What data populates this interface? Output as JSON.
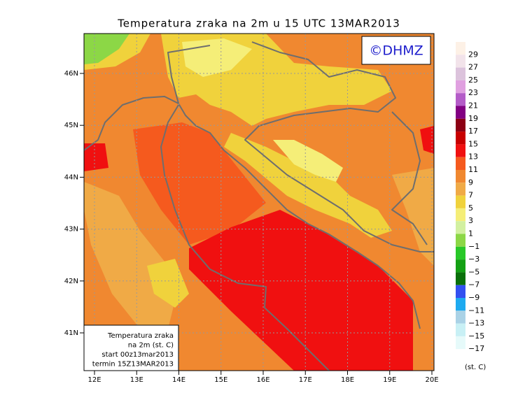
{
  "map": {
    "title": "Temperatura zraka na 2m u 15 UTC 13MAR2013",
    "watermark": "©DHMZ",
    "lat_labels": [
      "46N",
      "45N",
      "44N",
      "43N",
      "42N",
      "41N"
    ],
    "lon_labels": [
      "12E",
      "13E",
      "14E",
      "15E",
      "16E",
      "17E",
      "18E",
      "19E",
      "20E"
    ],
    "info": [
      "Temperatura zraka",
      "na 2m (st. C)",
      "start 00z13mar2013",
      "termin 15Z13MAR2013"
    ],
    "colorbar": {
      "labels": [
        "29",
        "27",
        "25",
        "23",
        "21",
        "19",
        "17",
        "15",
        "13",
        "11",
        "9",
        "7",
        "5",
        "3",
        "1",
        "−1",
        "−3",
        "−5",
        "−7",
        "−9",
        "−11",
        "−13",
        "−15",
        "−17"
      ],
      "colors": [
        "#fdf1e6",
        "#f2e3ea",
        "#dcc3dc",
        "#e0a0e0",
        "#b45cc8",
        "#820082",
        "#8c0014",
        "#c80000",
        "#f01010",
        "#f55a1e",
        "#f08830",
        "#f0aa46",
        "#f0d23c",
        "#f5ee78",
        "#d2f0a0",
        "#8cd746",
        "#28c828",
        "#14a014",
        "#0a700a",
        "#3250f0",
        "#1eaaf0",
        "#aad2e6",
        "#c8f0f5",
        "#e6fafa",
        "#ffffff"
      ],
      "unit": "(st. C)"
    }
  }
}
